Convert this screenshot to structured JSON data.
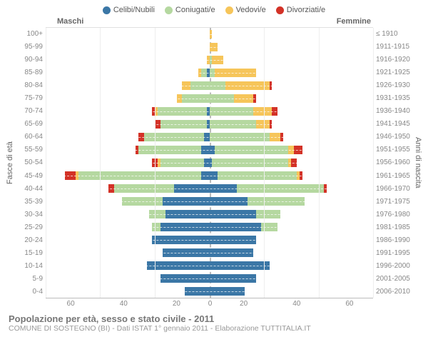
{
  "legend": [
    {
      "label": "Celibi/Nubili",
      "color": "#3b77a6"
    },
    {
      "label": "Coniugati/e",
      "color": "#b5d8a0"
    },
    {
      "label": "Vedovi/e",
      "color": "#f6c55a"
    },
    {
      "label": "Divorziati/e",
      "color": "#d33227"
    }
  ],
  "headers": {
    "male": "Maschi",
    "female": "Femmine"
  },
  "axis_labels": {
    "left": "Fasce di età",
    "right": "Anni di nascita"
  },
  "x_axis": {
    "max": 60,
    "ticks": [
      60,
      40,
      20,
      0,
      20,
      40,
      60
    ]
  },
  "age_groups": [
    "100+",
    "95-99",
    "90-94",
    "85-89",
    "80-84",
    "75-79",
    "70-74",
    "65-69",
    "60-64",
    "55-59",
    "50-54",
    "45-49",
    "40-44",
    "35-39",
    "30-34",
    "25-29",
    "20-24",
    "15-19",
    "10-14",
    "5-9",
    "0-4"
  ],
  "birth_years": [
    "≤ 1910",
    "1911-1915",
    "1916-1920",
    "1921-1925",
    "1926-1930",
    "1931-1935",
    "1936-1940",
    "1941-1945",
    "1946-1950",
    "1951-1955",
    "1956-1960",
    "1961-1965",
    "1966-1970",
    "1971-1975",
    "1976-1980",
    "1981-1985",
    "1986-1990",
    "1991-1995",
    "1996-2000",
    "2001-2005",
    "2006-2010"
  ],
  "data": {
    "m": [
      [
        0,
        0,
        0,
        0
      ],
      [
        0,
        0,
        0,
        0
      ],
      [
        0,
        0,
        1,
        0
      ],
      [
        1,
        2,
        1,
        0
      ],
      [
        0,
        7,
        3,
        0
      ],
      [
        0,
        10,
        2,
        0
      ],
      [
        1,
        18,
        1,
        1
      ],
      [
        1,
        17,
        0,
        2
      ],
      [
        2,
        22,
        0,
        2
      ],
      [
        3,
        23,
        0,
        1
      ],
      [
        2,
        16,
        1,
        2
      ],
      [
        3,
        45,
        1,
        4
      ],
      [
        13,
        22,
        0,
        2
      ],
      [
        17,
        15,
        0,
        0
      ],
      [
        16,
        6,
        0,
        0
      ],
      [
        18,
        3,
        0,
        0
      ],
      [
        21,
        0,
        0,
        0
      ],
      [
        17,
        0,
        0,
        0
      ],
      [
        23,
        0,
        0,
        0
      ],
      [
        18,
        0,
        0,
        0
      ],
      [
        9,
        0,
        0,
        0
      ]
    ],
    "f": [
      [
        0,
        0,
        1,
        0
      ],
      [
        0,
        0,
        3,
        0
      ],
      [
        0,
        1,
        4,
        0
      ],
      [
        0,
        2,
        15,
        0
      ],
      [
        0,
        6,
        16,
        1
      ],
      [
        0,
        9,
        7,
        1
      ],
      [
        0,
        16,
        7,
        2
      ],
      [
        0,
        17,
        5,
        1
      ],
      [
        0,
        22,
        4,
        1
      ],
      [
        2,
        27,
        2,
        3
      ],
      [
        1,
        28,
        1,
        2
      ],
      [
        3,
        29,
        1,
        1
      ],
      [
        10,
        32,
        0,
        1
      ],
      [
        14,
        21,
        0,
        0
      ],
      [
        17,
        9,
        0,
        0
      ],
      [
        19,
        6,
        0,
        0
      ],
      [
        17,
        0,
        0,
        0
      ],
      [
        16,
        0,
        0,
        0
      ],
      [
        22,
        0,
        0,
        0
      ],
      [
        17,
        0,
        0,
        0
      ],
      [
        13,
        0,
        0,
        0
      ]
    ]
  },
  "footer": {
    "title": "Popolazione per età, sesso e stato civile - 2011",
    "subtitle": "COMUNE DI SOSTEGNO (BI) - Dati ISTAT 1° gennaio 2011 - Elaborazione TUTTITALIA.IT"
  },
  "style": {
    "background": "#ffffff",
    "grid_color": "#eeeeee",
    "center_line_color": "#bbbbbb",
    "font_color": "#777777"
  }
}
